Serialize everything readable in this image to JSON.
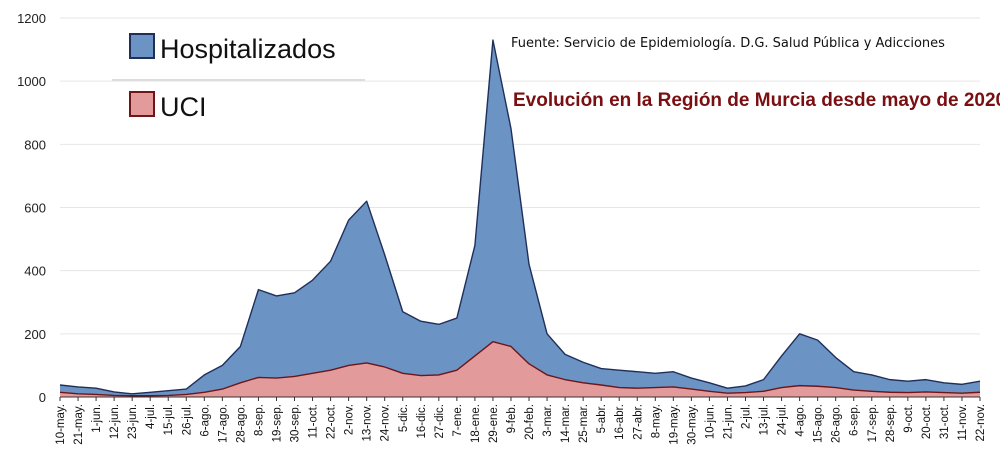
{
  "chart_data": {
    "type": "area",
    "subtitle": "Evolución en la Región de Murcia desde mayo de 2020",
    "source": "Fuente: Servicio de Epidemiología. D.G. Salud Pública y Adicciones",
    "ylim": [
      0,
      1200
    ],
    "yticks": [
      0,
      200,
      400,
      600,
      800,
      1000,
      1200
    ],
    "grid": "horizontal",
    "legend_position": "top-left",
    "x_tick_labels": [
      "10-may.",
      "21-may.",
      "1-jun.",
      "12-jun.",
      "23-jun.",
      "4-jul.",
      "15-jul.",
      "26-jul.",
      "6-ago.",
      "17-ago.",
      "28-ago.",
      "8-sep.",
      "19-sep.",
      "30-sep.",
      "11-oct.",
      "22-oct.",
      "2-nov.",
      "13-nov.",
      "24-nov.",
      "5-dic.",
      "16-dic.",
      "27-dic.",
      "7-ene.",
      "18-ene.",
      "29-ene.",
      "9-feb.",
      "20-feb.",
      "3-mar.",
      "14-mar.",
      "25-mar.",
      "5-abr.",
      "16-abr.",
      "27-abr.",
      "8-may.",
      "19-may.",
      "30-may.",
      "10-jun.",
      "21-jun.",
      "2-jul.",
      "13-jul.",
      "24-jul.",
      "4-ago.",
      "15-ago.",
      "26-ago.",
      "6-sep.",
      "17-sep.",
      "28-sep.",
      "9-oct.",
      "20-oct.",
      "31-oct.",
      "11-nov.",
      "22-nov."
    ],
    "x": [
      "10-may.",
      "21-may.",
      "1-jun.",
      "12-jun.",
      "23-jun.",
      "4-jul.",
      "15-jul.",
      "26-jul.",
      "6-ago.",
      "17-ago.",
      "28-ago.",
      "8-sep.",
      "19-sep.",
      "30-sep.",
      "11-oct.",
      "22-oct.",
      "2-nov.",
      "13-nov.",
      "24-nov.",
      "5-dic.",
      "16-dic.",
      "27-dic.",
      "7-ene.",
      "18-ene.",
      "29-ene.",
      "9-feb.",
      "20-feb.",
      "3-mar.",
      "14-mar.",
      "25-mar.",
      "5-abr.",
      "16-abr.",
      "27-abr.",
      "8-may.",
      "19-may.",
      "30-may.",
      "10-jun.",
      "21-jun.",
      "2-jul.",
      "13-jul.",
      "24-jul.",
      "4-ago.",
      "15-ago.",
      "26-ago.",
      "6-sep.",
      "17-sep.",
      "28-sep.",
      "9-oct.",
      "20-oct.",
      "31-oct.",
      "11-nov.",
      "22-nov."
    ],
    "series": [
      {
        "name": "Hospitalizados",
        "color": "#6b93c4",
        "stroke": "#1f2f5a",
        "values": [
          38,
          32,
          28,
          16,
          10,
          15,
          20,
          25,
          70,
          100,
          160,
          340,
          320,
          330,
          370,
          430,
          560,
          620,
          450,
          270,
          240,
          230,
          250,
          480,
          1130,
          850,
          420,
          200,
          135,
          110,
          90,
          85,
          80,
          75,
          80,
          60,
          45,
          28,
          35,
          55,
          130,
          200,
          180,
          125,
          80,
          70,
          55,
          50,
          55,
          45,
          40,
          50
        ]
      },
      {
        "name": "UCI",
        "color": "#e39a9a",
        "stroke": "#6e1518",
        "values": [
          15,
          10,
          8,
          5,
          4,
          4,
          5,
          8,
          15,
          25,
          45,
          62,
          60,
          65,
          75,
          85,
          100,
          108,
          95,
          75,
          68,
          70,
          85,
          130,
          175,
          160,
          105,
          70,
          55,
          45,
          38,
          30,
          28,
          30,
          32,
          25,
          18,
          12,
          14,
          18,
          30,
          36,
          34,
          30,
          22,
          18,
          15,
          14,
          16,
          14,
          12,
          15
        ]
      }
    ]
  }
}
